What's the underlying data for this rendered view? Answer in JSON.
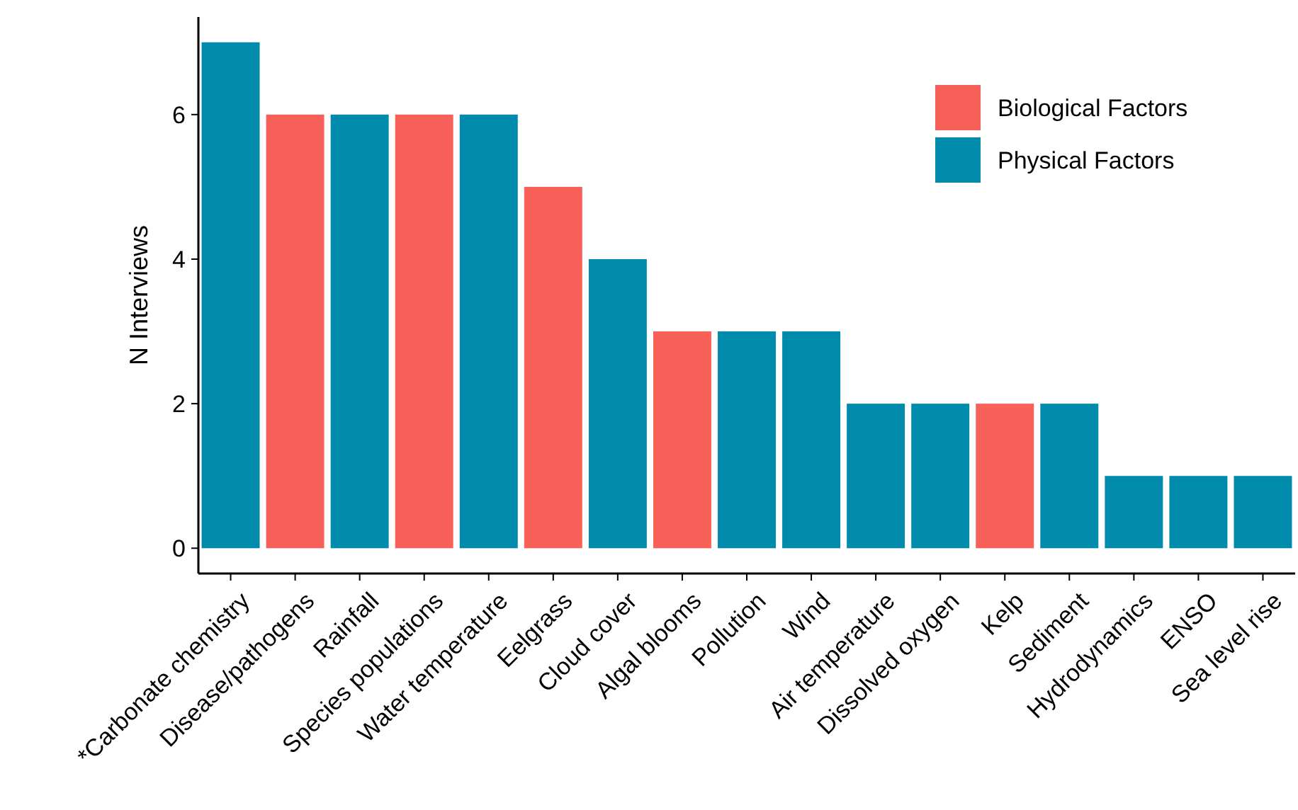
{
  "chart_data": {
    "type": "bar",
    "ylabel": "N Interviews",
    "categories": [
      "*Carbonate chemistry",
      "Disease/pathogens",
      "Rainfall",
      "Species populations",
      "Water temperature",
      "Eelgrass",
      "Cloud cover",
      "Algal blooms",
      "Pollution",
      "Wind",
      "Air temperature",
      "Dissolved oxygen",
      "Kelp",
      "Sediment",
      "Hydrodynamics",
      "ENSO",
      "Sea level rise"
    ],
    "series": [
      {
        "name": "Biological Factors",
        "color": "#f8605a",
        "values": [
          null,
          6,
          null,
          6,
          null,
          5,
          null,
          3,
          null,
          null,
          null,
          null,
          2,
          null,
          null,
          null,
          null
        ]
      },
      {
        "name": "Physical Factors",
        "color": "#008bad",
        "values": [
          7,
          null,
          6,
          null,
          6,
          null,
          4,
          null,
          3,
          3,
          2,
          2,
          null,
          2,
          1,
          1,
          1
        ]
      }
    ],
    "ylim": [
      -0.35,
      7.35
    ],
    "yticks": [
      0,
      2,
      4,
      6
    ],
    "grid": false,
    "legend": "top right"
  }
}
